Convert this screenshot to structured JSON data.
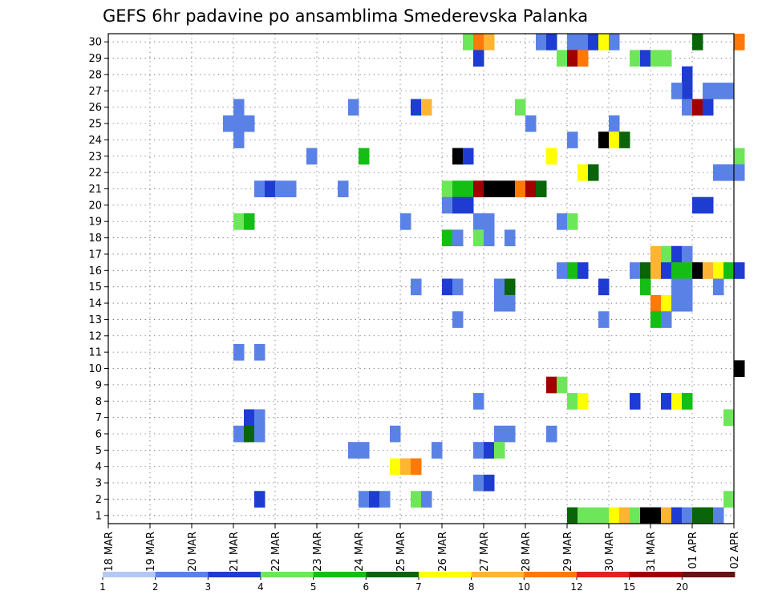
{
  "chart_data": {
    "type": "heatmap",
    "title": "GEFS 6hr padavine po ansamblima Smederevska Palanka",
    "xlabel": "",
    "ylabel": "",
    "x_tick_labels": [
      "18 MAR",
      "19 MAR",
      "20 MAR",
      "21 MAR",
      "22 MAR",
      "23 MAR",
      "24 MAR",
      "25 MAR",
      "26 MAR",
      "27 MAR",
      "28 MAR",
      "29 MAR",
      "30 MAR",
      "31 MAR",
      "01 APR",
      "02 APR"
    ],
    "y_tick_labels": [
      "1",
      "2",
      "3",
      "4",
      "5",
      "6",
      "7",
      "8",
      "9",
      "10",
      "11",
      "12",
      "13",
      "14",
      "15",
      "16",
      "17",
      "18",
      "19",
      "20",
      "21",
      "22",
      "23",
      "24",
      "25",
      "26",
      "27",
      "28",
      "29",
      "30"
    ],
    "x_range_days": [
      0,
      15
    ],
    "y_range_members": [
      0,
      30
    ],
    "grid": "dotted",
    "colorbar": {
      "levels": [
        "1",
        "2",
        "3",
        "4",
        "5",
        "6",
        "7",
        "8",
        "10",
        "12",
        "15",
        "20"
      ],
      "colors": [
        "#b4c8f5",
        "#5a82e6",
        "#1e3cd2",
        "#6ee65a",
        "#14be14",
        "#0a640a",
        "#ffff00",
        "#ffb432",
        "#ff780a",
        "#e61e1e",
        "#a00000",
        "#641414"
      ]
    },
    "cells": [
      [
        8.5,
        30,
        3
      ],
      [
        8.75,
        30,
        8
      ],
      [
        9,
        30,
        7
      ],
      [
        10.25,
        30,
        1
      ],
      [
        10.5,
        30,
        2
      ],
      [
        11,
        30,
        1
      ],
      [
        11.25,
        30,
        1
      ],
      [
        11.5,
        30,
        2
      ],
      [
        11.75,
        30,
        6
      ],
      [
        12,
        30,
        1
      ],
      [
        14,
        30,
        5
      ],
      [
        15,
        30,
        8
      ],
      [
        8.75,
        29,
        2
      ],
      [
        10.75,
        29,
        3
      ],
      [
        11,
        29,
        10
      ],
      [
        11.25,
        29,
        8
      ],
      [
        12.5,
        29,
        3
      ],
      [
        12.75,
        29,
        2
      ],
      [
        13,
        29,
        3
      ],
      [
        13.25,
        29,
        3
      ],
      [
        13.75,
        28,
        2
      ],
      [
        13.75,
        27,
        2
      ],
      [
        13.5,
        27,
        1
      ],
      [
        14.25,
        27,
        1
      ],
      [
        14.5,
        27,
        1
      ],
      [
        14.75,
        27,
        1
      ],
      [
        3,
        26,
        1
      ],
      [
        5.75,
        26,
        1
      ],
      [
        7.25,
        26,
        2
      ],
      [
        7.5,
        26,
        7
      ],
      [
        9.75,
        26,
        3
      ],
      [
        13.75,
        26,
        1
      ],
      [
        14,
        26,
        10
      ],
      [
        14.25,
        26,
        2
      ],
      [
        2.75,
        25,
        1
      ],
      [
        3,
        25,
        1
      ],
      [
        3.25,
        25,
        1
      ],
      [
        10,
        25,
        1
      ],
      [
        12,
        25,
        1
      ],
      [
        3,
        24,
        1
      ],
      [
        11,
        24,
        1
      ],
      [
        11.75,
        24,
        15
      ],
      [
        12,
        24,
        6
      ],
      [
        12.25,
        24,
        5
      ],
      [
        4.75,
        23,
        1
      ],
      [
        6,
        23,
        4
      ],
      [
        8.25,
        23,
        20
      ],
      [
        8.5,
        23,
        2
      ],
      [
        10.5,
        23,
        6
      ],
      [
        15,
        23,
        3
      ],
      [
        11.25,
        22,
        6
      ],
      [
        11.5,
        22,
        5
      ],
      [
        14.5,
        22,
        1
      ],
      [
        14.75,
        22,
        1
      ],
      [
        15,
        22,
        1
      ],
      [
        3.5,
        21,
        1
      ],
      [
        3.75,
        21,
        2
      ],
      [
        4,
        21,
        1
      ],
      [
        4.25,
        21,
        1
      ],
      [
        5.5,
        21,
        1
      ],
      [
        8,
        21,
        3
      ],
      [
        8.25,
        21,
        4
      ],
      [
        8.5,
        21,
        4
      ],
      [
        8.75,
        21,
        10
      ],
      [
        9,
        21,
        20
      ],
      [
        9.25,
        21,
        15
      ],
      [
        9.5,
        21,
        20
      ],
      [
        9.75,
        21,
        8
      ],
      [
        10,
        21,
        10
      ],
      [
        10.25,
        21,
        5
      ],
      [
        8,
        20,
        1
      ],
      [
        8.25,
        20,
        2
      ],
      [
        8.5,
        20,
        2
      ],
      [
        14,
        20,
        2
      ],
      [
        14.25,
        20,
        2
      ],
      [
        3,
        19,
        3
      ],
      [
        3.25,
        19,
        4
      ],
      [
        7,
        19,
        1
      ],
      [
        8.75,
        19,
        1
      ],
      [
        9,
        19,
        1
      ],
      [
        10.75,
        19,
        1
      ],
      [
        11,
        19,
        3
      ],
      [
        8,
        18,
        4
      ],
      [
        8.25,
        18,
        1
      ],
      [
        8.75,
        18,
        3
      ],
      [
        9,
        18,
        1
      ],
      [
        9.5,
        18,
        1
      ],
      [
        13,
        17,
        7
      ],
      [
        13.25,
        17,
        3
      ],
      [
        13.5,
        17,
        2
      ],
      [
        13.75,
        17,
        1
      ],
      [
        10.75,
        16,
        1
      ],
      [
        11,
        16,
        4
      ],
      [
        11.25,
        16,
        2
      ],
      [
        12.5,
        16,
        1
      ],
      [
        12.75,
        16,
        5
      ],
      [
        13,
        16,
        7
      ],
      [
        13.25,
        16,
        2
      ],
      [
        13.5,
        16,
        4
      ],
      [
        13.75,
        16,
        4
      ],
      [
        14,
        16,
        15
      ],
      [
        14.25,
        16,
        7
      ],
      [
        14.5,
        16,
        6
      ],
      [
        14.75,
        16,
        4
      ],
      [
        15,
        16,
        2
      ],
      [
        7.25,
        15,
        1
      ],
      [
        8,
        15,
        2
      ],
      [
        8.25,
        15,
        1
      ],
      [
        9.25,
        15,
        1
      ],
      [
        9.5,
        15,
        5
      ],
      [
        11.75,
        15,
        2
      ],
      [
        12.75,
        15,
        4
      ],
      [
        13.5,
        15,
        1
      ],
      [
        13.75,
        15,
        1
      ],
      [
        14.5,
        15,
        1
      ],
      [
        9.25,
        14,
        1
      ],
      [
        9.5,
        14,
        1
      ],
      [
        13,
        14,
        8
      ],
      [
        13.25,
        14,
        6
      ],
      [
        13.5,
        14,
        1
      ],
      [
        13.75,
        14,
        1
      ],
      [
        8.25,
        13,
        1
      ],
      [
        11.75,
        13,
        1
      ],
      [
        13,
        13,
        4
      ],
      [
        13.25,
        13,
        1
      ],
      [
        3,
        11,
        1
      ],
      [
        3.5,
        11,
        1
      ],
      [
        15,
        10,
        15
      ],
      [
        10.5,
        9,
        10
      ],
      [
        10.75,
        9,
        3
      ],
      [
        8.75,
        8,
        1
      ],
      [
        11,
        8,
        3
      ],
      [
        11.25,
        8,
        6
      ],
      [
        12.5,
        8,
        2
      ],
      [
        13.25,
        8,
        2
      ],
      [
        13.5,
        8,
        6
      ],
      [
        13.75,
        8,
        4
      ],
      [
        3.25,
        7,
        2
      ],
      [
        3.5,
        7,
        1
      ],
      [
        14.75,
        7,
        3
      ],
      [
        3,
        6,
        1
      ],
      [
        3.25,
        6,
        5
      ],
      [
        3.5,
        6,
        1
      ],
      [
        6.75,
        6,
        1
      ],
      [
        9.25,
        6,
        1
      ],
      [
        9.5,
        6,
        1
      ],
      [
        10.5,
        6,
        1
      ],
      [
        5.75,
        5,
        1
      ],
      [
        6,
        5,
        1
      ],
      [
        7.75,
        5,
        1
      ],
      [
        8.75,
        5,
        1
      ],
      [
        9,
        5,
        2
      ],
      [
        9.25,
        5,
        3
      ],
      [
        6.75,
        4,
        6
      ],
      [
        7,
        4,
        7
      ],
      [
        7.25,
        4,
        8
      ],
      [
        8.75,
        3,
        1
      ],
      [
        9,
        3,
        2
      ],
      [
        3.5,
        2,
        2
      ],
      [
        6,
        2,
        1
      ],
      [
        6.25,
        2,
        2
      ],
      [
        6.5,
        2,
        1
      ],
      [
        7.25,
        2,
        3
      ],
      [
        7.5,
        2,
        1
      ],
      [
        14.75,
        2,
        3
      ],
      [
        11,
        1,
        5
      ],
      [
        11.25,
        1,
        3
      ],
      [
        11.5,
        1,
        3
      ],
      [
        11.75,
        1,
        3
      ],
      [
        12,
        1,
        6
      ],
      [
        12.25,
        1,
        7
      ],
      [
        12.5,
        1,
        3
      ],
      [
        12.75,
        1,
        15
      ],
      [
        13,
        1,
        15
      ],
      [
        13.25,
        1,
        7
      ],
      [
        13.5,
        1,
        2
      ],
      [
        13.75,
        1,
        1
      ],
      [
        14,
        1,
        5
      ],
      [
        14.25,
        1,
        5
      ],
      [
        14.5,
        1,
        1
      ]
    ]
  }
}
